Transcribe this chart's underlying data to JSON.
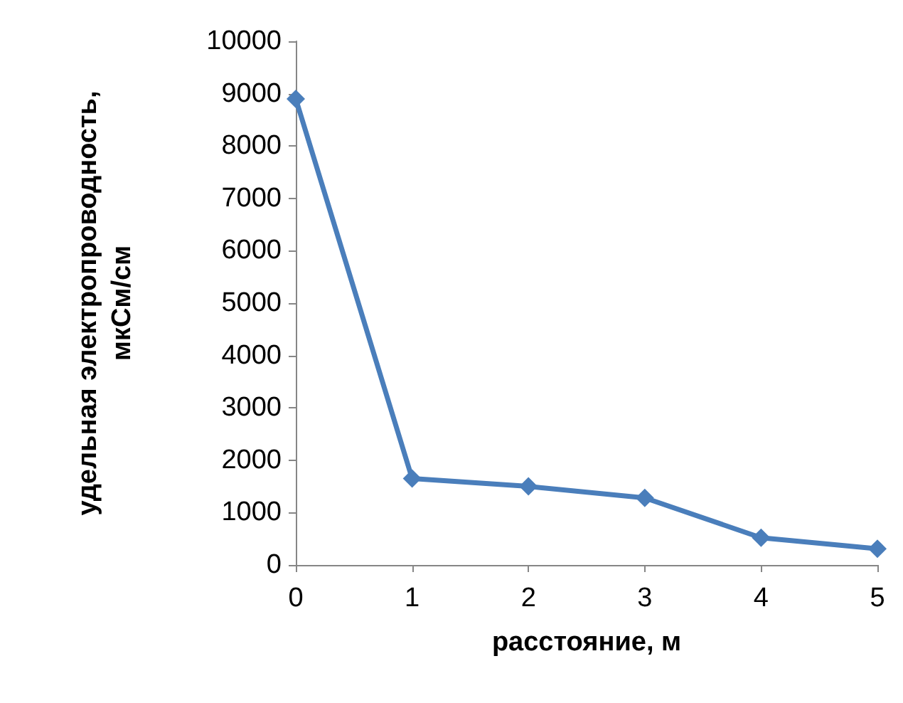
{
  "chart_data": {
    "type": "line",
    "xlabel": "расстояние, м",
    "ylabel": "удельная электропроводность, мкСм/см",
    "x": [
      0,
      1,
      2,
      3,
      4,
      5
    ],
    "series": [
      {
        "color": "#4a7ebb",
        "values": [
          8900,
          1650,
          1500,
          1280,
          520,
          310
        ]
      }
    ],
    "xlim": [
      0,
      5
    ],
    "xticks": [
      0,
      1,
      2,
      3,
      4,
      5
    ],
    "ylim": [
      0,
      10000
    ],
    "yticks": [
      0,
      1000,
      2000,
      3000,
      4000,
      5000,
      6000,
      7000,
      8000,
      9000,
      10000
    ],
    "grid": false,
    "marker": "diamond",
    "line_style": "solid"
  }
}
